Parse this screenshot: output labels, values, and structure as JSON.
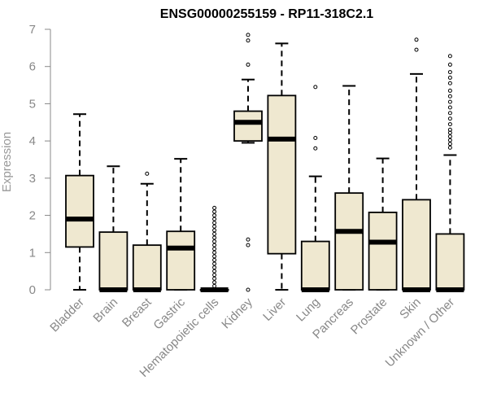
{
  "chart_data": {
    "type": "boxplot",
    "title": "ENSG00000255159 - RP11-318C2.1",
    "xlabel": "",
    "ylabel": "Expression",
    "ylim": [
      0,
      7
    ],
    "yticks": [
      "0",
      "1",
      "2",
      "3",
      "4",
      "5",
      "6",
      "7"
    ],
    "grid": false,
    "box_fill": "#efe8d0",
    "box_stroke": "#000000",
    "categories": [
      "Bladder",
      "Brain",
      "Breast",
      "Gastric",
      "Hematopoietic cells",
      "Kidney",
      "Liver",
      "Lung",
      "Pancreas",
      "Prostate",
      "Skin",
      "Unknown / Other"
    ],
    "boxes": [
      {
        "whisker_low": 0,
        "q1": 1.15,
        "median": 1.9,
        "q3": 3.07,
        "whisker_high": 4.72,
        "outliers": []
      },
      {
        "whisker_low": 0,
        "q1": 0,
        "median": 0,
        "q3": 1.55,
        "whisker_high": 3.32,
        "outliers": []
      },
      {
        "whisker_low": 0,
        "q1": 0,
        "median": 0,
        "q3": 1.2,
        "whisker_high": 2.85,
        "outliers": [
          3.12
        ]
      },
      {
        "whisker_low": 0,
        "q1": 0,
        "median": 1.12,
        "q3": 1.57,
        "whisker_high": 3.52,
        "outliers": []
      },
      {
        "whisker_low": 0,
        "q1": 0,
        "median": 0,
        "q3": 0,
        "whisker_high": 0,
        "outliers": [
          0.1,
          0.2,
          0.3,
          0.4,
          0.5,
          0.6,
          0.7,
          0.8,
          0.9,
          1.0,
          1.1,
          1.2,
          1.3,
          1.4,
          1.5,
          1.6,
          1.7,
          1.8,
          1.9,
          2.0,
          2.1,
          2.2
        ]
      },
      {
        "whisker_low": 3.95,
        "q1": 4.0,
        "median": 4.5,
        "q3": 4.8,
        "whisker_high": 5.65,
        "outliers": [
          0,
          1.2,
          1.35,
          6.05,
          6.7,
          6.85
        ]
      },
      {
        "whisker_low": 0,
        "q1": 0.97,
        "median": 4.05,
        "q3": 5.22,
        "whisker_high": 6.62,
        "outliers": []
      },
      {
        "whisker_low": 0,
        "q1": 0,
        "median": 0,
        "q3": 1.3,
        "whisker_high": 3.05,
        "outliers": [
          3.8,
          4.08,
          5.45
        ]
      },
      {
        "whisker_low": 0,
        "q1": 0,
        "median": 1.57,
        "q3": 2.6,
        "whisker_high": 5.48,
        "outliers": []
      },
      {
        "whisker_low": 0,
        "q1": 0,
        "median": 1.28,
        "q3": 2.08,
        "whisker_high": 3.53,
        "outliers": []
      },
      {
        "whisker_low": 0,
        "q1": 0,
        "median": 0,
        "q3": 2.42,
        "whisker_high": 5.8,
        "outliers": [
          6.45,
          6.72
        ]
      },
      {
        "whisker_low": 0,
        "q1": 0,
        "median": 0,
        "q3": 1.5,
        "whisker_high": 3.62,
        "outliers": [
          3.82,
          3.92,
          4.02,
          4.12,
          4.22,
          4.3,
          4.45,
          4.6,
          4.75,
          4.9,
          5.05,
          5.2,
          5.35,
          5.55,
          5.7,
          5.85,
          6.05,
          6.28
        ]
      }
    ]
  }
}
